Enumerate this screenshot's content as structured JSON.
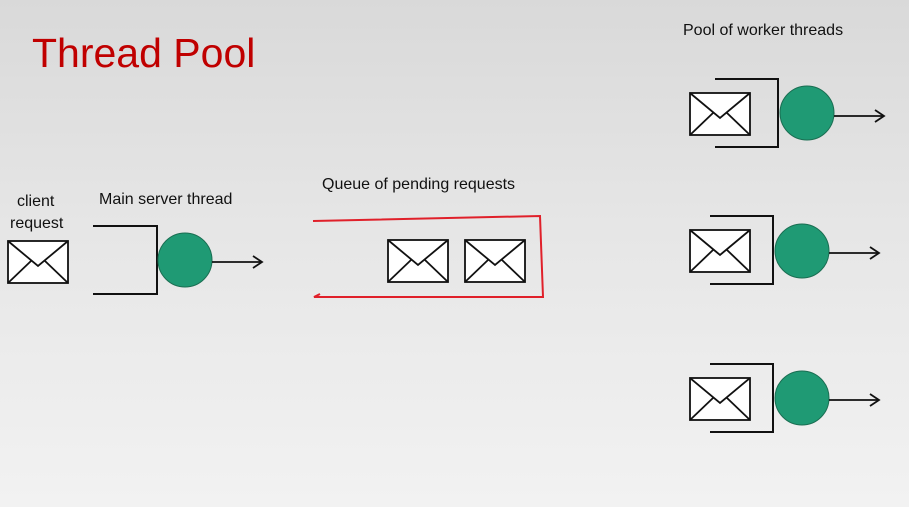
{
  "title": "Thread Pool",
  "labels": {
    "client_line1": "client",
    "client_line2": "request",
    "main_thread": "Main server thread",
    "queue": "Queue of pending requests",
    "pool": "Pool of worker threads"
  },
  "colors": {
    "title": "#c00000",
    "thread_circle": "#1f9a74",
    "queue_border": "#e0202a",
    "ink": "#111111"
  },
  "icons": {
    "envelope": "envelope-icon",
    "thread": "thread-circle-icon",
    "arrow": "arrow-right-icon"
  }
}
